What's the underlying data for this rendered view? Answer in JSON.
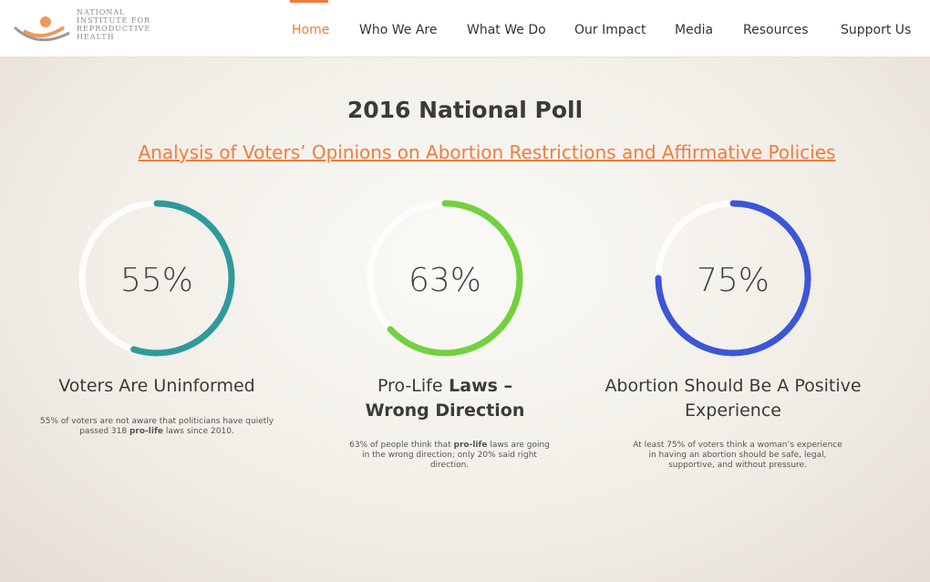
{
  "header": {
    "logo_lines": [
      "NATIONAL",
      "INSTITUTE FOR",
      "REPRODUCTIVE",
      "HEALTH"
    ],
    "nav": [
      "Home",
      "Who We Are",
      "What We Do",
      "Our Impact",
      "Media",
      "Resources",
      "Support Us"
    ],
    "active": 0
  },
  "title": "2016 National Poll",
  "subtitle": "Analysis of Voters’ Opinions on Abortion Restrictions and Affirmative Policies",
  "stats": [
    {
      "value": 55,
      "label": "55%",
      "color": "#2f9a9b",
      "heading": [
        "Voters Are Uninformed"
      ],
      "description": [
        "55% of voters are not aware that politicians have quietly passed 318 ",
        "pro-life",
        " laws since 2010."
      ]
    },
    {
      "value": 63,
      "label": "63%",
      "color": "#72d13f",
      "heading": [
        "Pro-Life",
        " Laws – Wrong Direction"
      ],
      "description": [
        "63% of people think that ",
        "pro-life",
        " laws are going in the wrong direction; only 20% said right direction."
      ]
    },
    {
      "value": 75,
      "label": "75%",
      "color": "#3b56d6",
      "heading": [
        "Abortion Should Be A Positive Experience"
      ],
      "description": [
        "At least 75% of voters think a woman’s experience in having an abortion should be safe, legal, supportive, and without pressure."
      ]
    }
  ]
}
